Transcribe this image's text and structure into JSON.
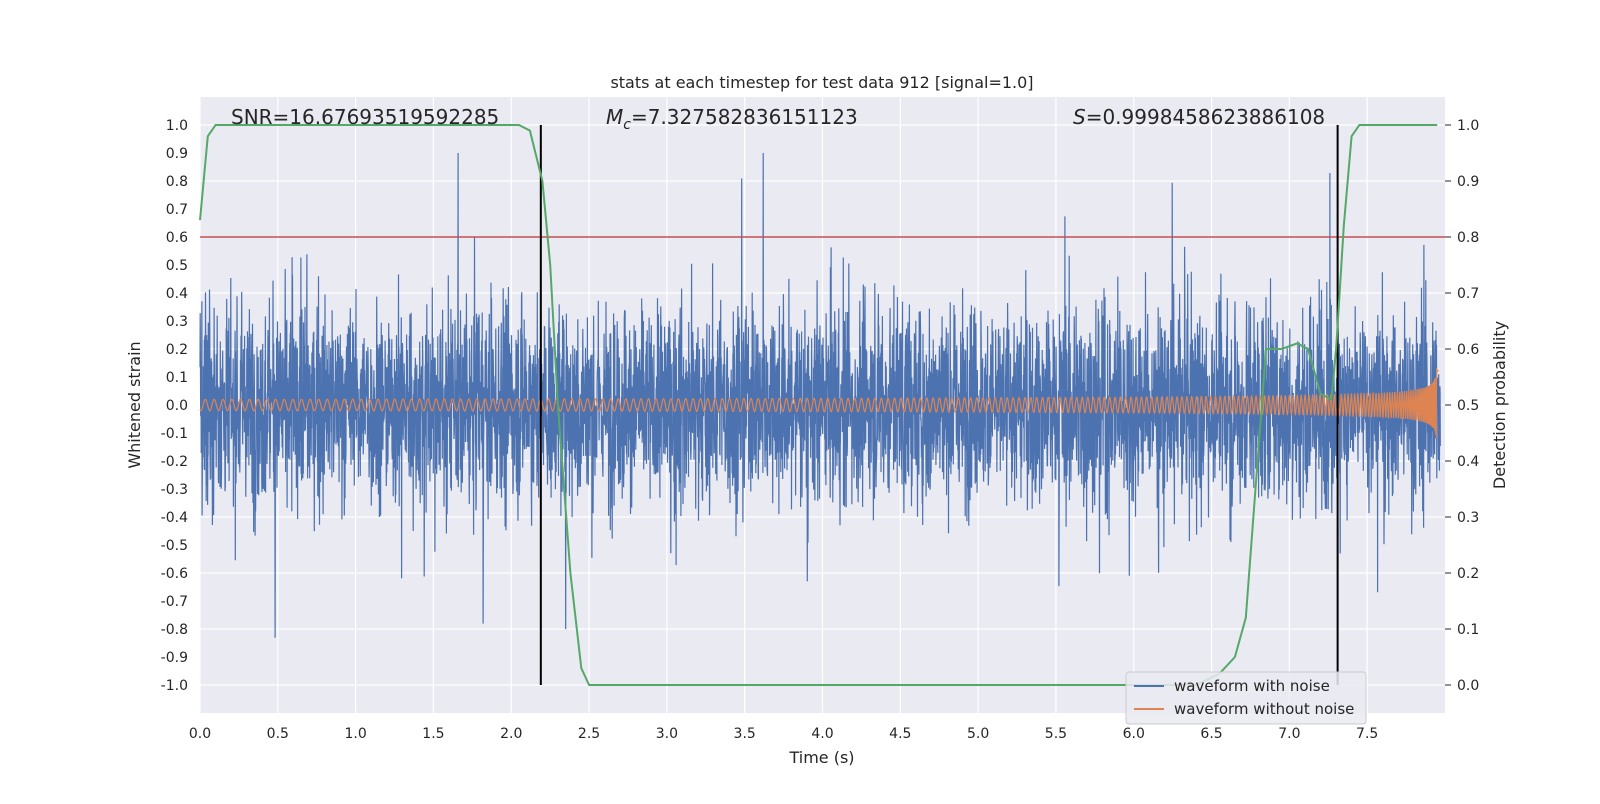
{
  "chart_data": {
    "type": "line",
    "title": "stats at each timestep for test data 912 [signal=1.0]",
    "xlabel": "Time (s)",
    "ylabel_left": "Whitened strain",
    "ylabel_right": "Detection probability",
    "xlim": [
      0.0,
      8.0
    ],
    "ylim_left": [
      -1.1,
      1.1
    ],
    "ylim_right": [
      -0.05,
      1.05
    ],
    "x_ticks": [
      "0.0",
      "0.5",
      "1.0",
      "1.5",
      "2.0",
      "2.5",
      "3.0",
      "3.5",
      "4.0",
      "4.5",
      "5.0",
      "5.5",
      "6.0",
      "6.5",
      "7.0",
      "7.5"
    ],
    "y_left_ticks": [
      "1.0",
      "0.9",
      "0.8",
      "0.7",
      "0.6",
      "0.5",
      "0.4",
      "0.3",
      "0.2",
      "0.1",
      "0.0",
      "-0.1",
      "-0.2",
      "-0.3",
      "-0.4",
      "-0.5",
      "-0.6",
      "-0.7",
      "-0.8",
      "-0.9",
      "-1.0"
    ],
    "y_right_ticks": [
      "1.0",
      "0.9",
      "0.8",
      "0.7",
      "0.6",
      "0.5",
      "0.4",
      "0.3",
      "0.2",
      "0.1",
      "0.0"
    ],
    "grid": true,
    "legend_position": "bottom-right",
    "annotations": {
      "snr": "SNR=16.67693519592285",
      "mc_symbol": "M",
      "mc_sub": "c",
      "mc_value": "=7.327582836151123",
      "s_symbol": "S",
      "s_value": "=0.9998458623886108"
    },
    "threshold": {
      "value": 0.8,
      "axis": "right",
      "color": "#c44e52"
    },
    "vertical_lines": [
      {
        "x": 2.19,
        "color": "#000000"
      },
      {
        "x": 7.31,
        "color": "#000000"
      }
    ],
    "series": [
      {
        "name": "waveform with noise",
        "color": "#4c72b0",
        "kind": "noise",
        "amplitude_envelope": 0.38,
        "peak_max": 0.9,
        "peak_min": -0.96
      },
      {
        "name": "waveform without noise",
        "color": "#dd8452",
        "kind": "chirp",
        "amplitude_start": 0.02,
        "amplitude_end": 0.65,
        "t_merger": 7.95
      },
      {
        "name": "",
        "color": "#55a868",
        "axis": "right",
        "x": [
          0.0,
          0.05,
          0.1,
          0.15,
          0.2,
          0.4,
          0.8,
          1.2,
          1.6,
          1.9,
          2.05,
          2.12,
          2.2,
          2.25,
          2.3,
          2.38,
          2.45,
          2.5,
          2.8,
          3.2,
          3.6,
          4.0,
          4.4,
          4.9,
          5.0,
          5.3,
          5.5,
          5.8,
          6.1,
          6.4,
          6.55,
          6.65,
          6.72,
          6.85,
          6.95,
          7.05,
          7.12,
          7.2,
          7.27,
          7.3,
          7.35,
          7.4,
          7.45,
          7.6,
          7.8,
          7.95
        ],
        "values": [
          0.83,
          0.98,
          1.0,
          1.0,
          1.0,
          1.0,
          1.0,
          1.0,
          1.0,
          1.0,
          1.0,
          0.99,
          0.9,
          0.75,
          0.5,
          0.2,
          0.03,
          0.0,
          0.0,
          0.0,
          0.0,
          0.0,
          0.0,
          0.0,
          0.0,
          0.0,
          0.0,
          0.0,
          0.0,
          0.0,
          0.02,
          0.05,
          0.12,
          0.6,
          0.6,
          0.61,
          0.6,
          0.52,
          0.51,
          0.6,
          0.82,
          0.98,
          1.0,
          1.0,
          1.0,
          1.0
        ]
      }
    ]
  }
}
